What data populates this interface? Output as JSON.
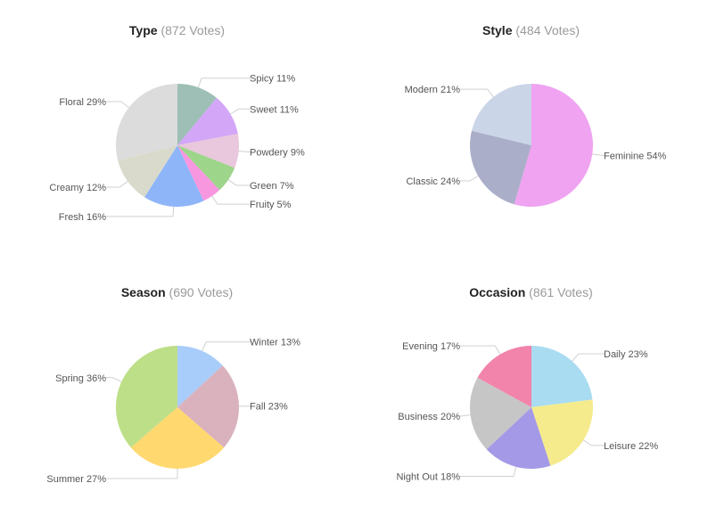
{
  "chart_data": [
    {
      "type": "pie",
      "title": "Type",
      "subtitle": "(872 Votes)",
      "slices": [
        {
          "label": "Spicy",
          "value": 11,
          "display": "Spicy 11%",
          "color": "#9dbfb6"
        },
        {
          "label": "Sweet",
          "value": 11,
          "display": "Sweet 11%",
          "color": "#d3a6f7"
        },
        {
          "label": "Powdery",
          "value": 9,
          "display": "Powdery 9%",
          "color": "#e9c7dc"
        },
        {
          "label": "Green",
          "value": 7,
          "display": "Green 7%",
          "color": "#9dd58a"
        },
        {
          "label": "Fruity",
          "value": 5,
          "display": "Fruity 5%",
          "color": "#f797e0"
        },
        {
          "label": "Fresh",
          "value": 16,
          "display": "Fresh 16%",
          "color": "#8fb5f9"
        },
        {
          "label": "Creamy",
          "value": 12,
          "display": "Creamy 12%",
          "color": "#d9dacb"
        },
        {
          "label": "Floral",
          "value": 29,
          "display": "Floral 29%",
          "color": "#dcdcdc"
        }
      ]
    },
    {
      "type": "pie",
      "title": "Style",
      "subtitle": "(484 Votes)",
      "slices": [
        {
          "label": "Feminine",
          "value": 54,
          "display": "Feminine 54%",
          "color": "#efa3f1"
        },
        {
          "label": "Classic",
          "value": 24,
          "display": "Classic 24%",
          "color": "#aaaec8"
        },
        {
          "label": "Modern",
          "value": 21,
          "display": "Modern 21%",
          "color": "#cad5e8"
        }
      ]
    },
    {
      "type": "pie",
      "title": "Season",
      "subtitle": "(690 Votes)",
      "slices": [
        {
          "label": "Winter",
          "value": 13,
          "display": "Winter 13%",
          "color": "#a9cdfb"
        },
        {
          "label": "Fall",
          "value": 23,
          "display": "Fall 23%",
          "color": "#d9b2bd"
        },
        {
          "label": "Summer",
          "value": 27,
          "display": "Summer 27%",
          "color": "#ffd86f"
        },
        {
          "label": "Spring",
          "value": 36,
          "display": "Spring 36%",
          "color": "#bddf87"
        }
      ]
    },
    {
      "type": "pie",
      "title": "Occasion",
      "subtitle": "(861 Votes)",
      "slices": [
        {
          "label": "Daily",
          "value": 23,
          "display": "Daily 23%",
          "color": "#a9dcf1"
        },
        {
          "label": "Leisure",
          "value": 22,
          "display": "Leisure 22%",
          "color": "#f5eb8c"
        },
        {
          "label": "Night Out",
          "value": 18,
          "display": "Night Out 18%",
          "color": "#a399e6"
        },
        {
          "label": "Business",
          "value": 20,
          "display": "Business 20%",
          "color": "#c6c6c6"
        },
        {
          "label": "Evening",
          "value": 17,
          "display": "Evening 17%",
          "color": "#f283ab"
        }
      ]
    }
  ]
}
